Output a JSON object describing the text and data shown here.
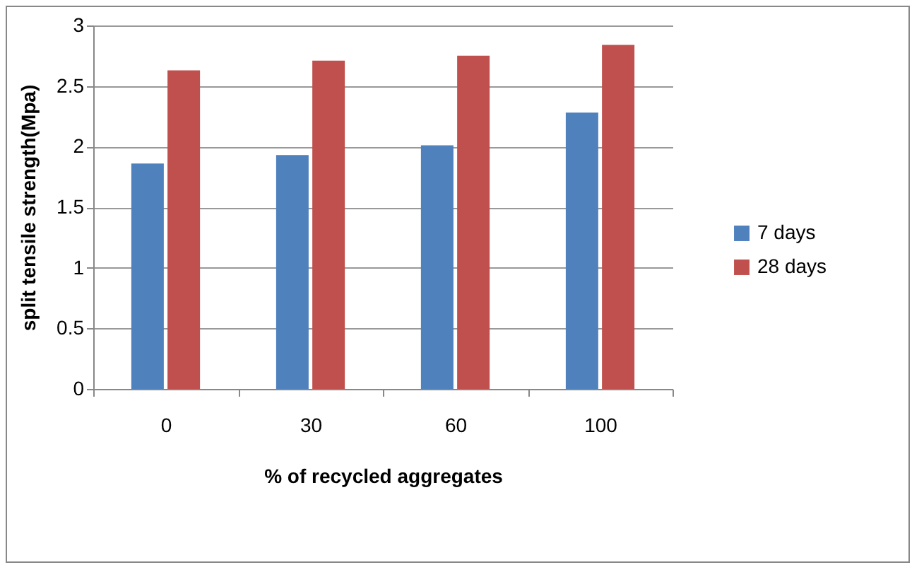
{
  "chart_data": {
    "type": "bar",
    "xlabel": "% of recycled aggregates",
    "ylabel": "split tensile strength(Mpa)",
    "categories": [
      "0",
      "30",
      "60",
      "100"
    ],
    "series": [
      {
        "name": "7 days",
        "color": "#4f81bd",
        "values": [
          1.86,
          1.93,
          2.01,
          2.28
        ]
      },
      {
        "name": "28 days",
        "color": "#c0504d",
        "values": [
          2.63,
          2.71,
          2.75,
          2.84
        ]
      }
    ],
    "ylim": [
      0,
      3
    ],
    "yticks": [
      0,
      0.5,
      1,
      1.5,
      2,
      2.5,
      3
    ],
    "grid": "y",
    "legend": "right"
  }
}
